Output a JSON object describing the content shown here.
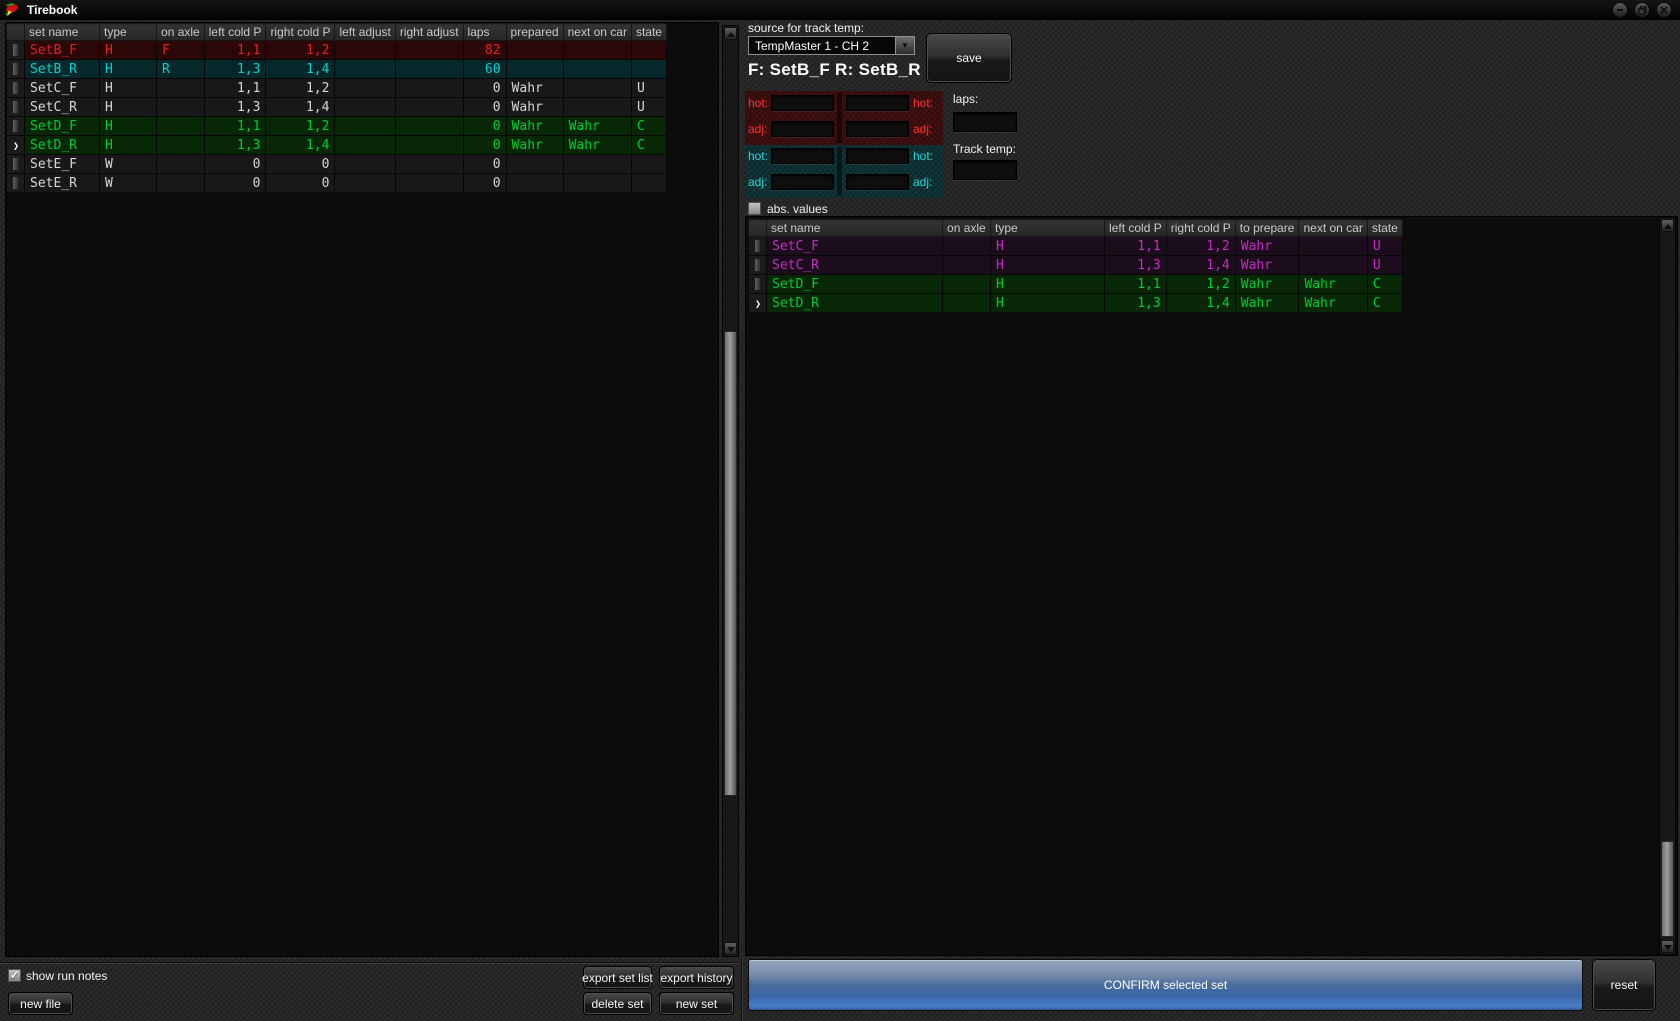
{
  "window": {
    "title": "Tirebook"
  },
  "icons": {
    "checkmark": "✓",
    "dropdown_arrow": "▼",
    "selected_row_arrow": "❯"
  },
  "left_table": {
    "columns": [
      "",
      "set name",
      "type",
      "on axle",
      "left cold P",
      "right cold P",
      "left adjust",
      "right adjust",
      "laps",
      "prepared",
      "next on car",
      "state"
    ],
    "rows": [
      {
        "cells": [
          "SetB_F",
          "H",
          "F",
          "1,1",
          "1,2",
          "",
          "",
          "82",
          "",
          "",
          ""
        ],
        "color": "red",
        "selected": false
      },
      {
        "cells": [
          "SetB_R",
          "H",
          "R",
          "1,3",
          "1,4",
          "",
          "",
          "60",
          "",
          "",
          ""
        ],
        "color": "cyan",
        "selected": false
      },
      {
        "cells": [
          "SetC_F",
          "H",
          "",
          "1,1",
          "1,2",
          "",
          "",
          "0",
          "Wahr",
          "",
          "U"
        ],
        "color": "default",
        "selected": false
      },
      {
        "cells": [
          "SetC_R",
          "H",
          "",
          "1,3",
          "1,4",
          "",
          "",
          "0",
          "Wahr",
          "",
          "U"
        ],
        "color": "default",
        "selected": false
      },
      {
        "cells": [
          "SetD_F",
          "H",
          "",
          "1,1",
          "1,2",
          "",
          "",
          "0",
          "Wahr",
          "Wahr",
          "C"
        ],
        "color": "green",
        "selected": false
      },
      {
        "cells": [
          "SetD_R",
          "H",
          "",
          "1,3",
          "1,4",
          "",
          "",
          "0",
          "Wahr",
          "Wahr",
          "C"
        ],
        "color": "green",
        "selected": true
      },
      {
        "cells": [
          "SetE_F",
          "W",
          "",
          "0",
          "0",
          "",
          "",
          "0",
          "",
          "",
          ""
        ],
        "color": "default",
        "selected": false
      },
      {
        "cells": [
          "SetE_R",
          "W",
          "",
          "0",
          "0",
          "",
          "",
          "0",
          "",
          "",
          ""
        ],
        "color": "default",
        "selected": false
      }
    ]
  },
  "right_table": {
    "columns": [
      "",
      "set name",
      "on axle",
      "type",
      "left cold P",
      "right cold P",
      "to prepare",
      "next on car",
      "state"
    ],
    "rows": [
      {
        "cells": [
          "SetC_F",
          "",
          "H",
          "1,1",
          "1,2",
          "Wahr",
          "",
          "U"
        ],
        "color": "magenta",
        "selected": false
      },
      {
        "cells": [
          "SetC_R",
          "",
          "H",
          "1,3",
          "1,4",
          "Wahr",
          "",
          "U"
        ],
        "color": "magenta",
        "selected": false
      },
      {
        "cells": [
          "SetD_F",
          "",
          "H",
          "1,1",
          "1,2",
          "Wahr",
          "Wahr",
          "C"
        ],
        "color": "green",
        "selected": false
      },
      {
        "cells": [
          "SetD_R",
          "",
          "H",
          "1,3",
          "1,4",
          "Wahr",
          "Wahr",
          "C"
        ],
        "color": "green",
        "selected": true
      }
    ]
  },
  "temp_source": {
    "label": "source for track temp:",
    "value": "TempMaster 1 - CH 2",
    "save_label": "save"
  },
  "selection_header": "F: SetB_F R: SetB_R",
  "temps": {
    "front": {
      "hot": "hot:",
      "adj": "adj:"
    },
    "rear": {
      "hot": "hot:",
      "adj": "adj:"
    },
    "laps_label": "laps:",
    "track_temp_label": "Track temp:"
  },
  "abs_values_label": "abs. values",
  "footer": {
    "show_run_notes": "show run notes",
    "export_set_list": "export set list",
    "export_history": "export history",
    "new_file": "new file",
    "delete_set": "delete set",
    "new_set": "new set",
    "confirm": "CONFIRM selected set",
    "reset": "reset"
  },
  "colors": {
    "row_red": "#e02222",
    "row_cyan": "#00d2d2",
    "row_green": "#00cc33",
    "row_magenta": "#c12fc1",
    "confirm_blue": "#3a66a6"
  }
}
